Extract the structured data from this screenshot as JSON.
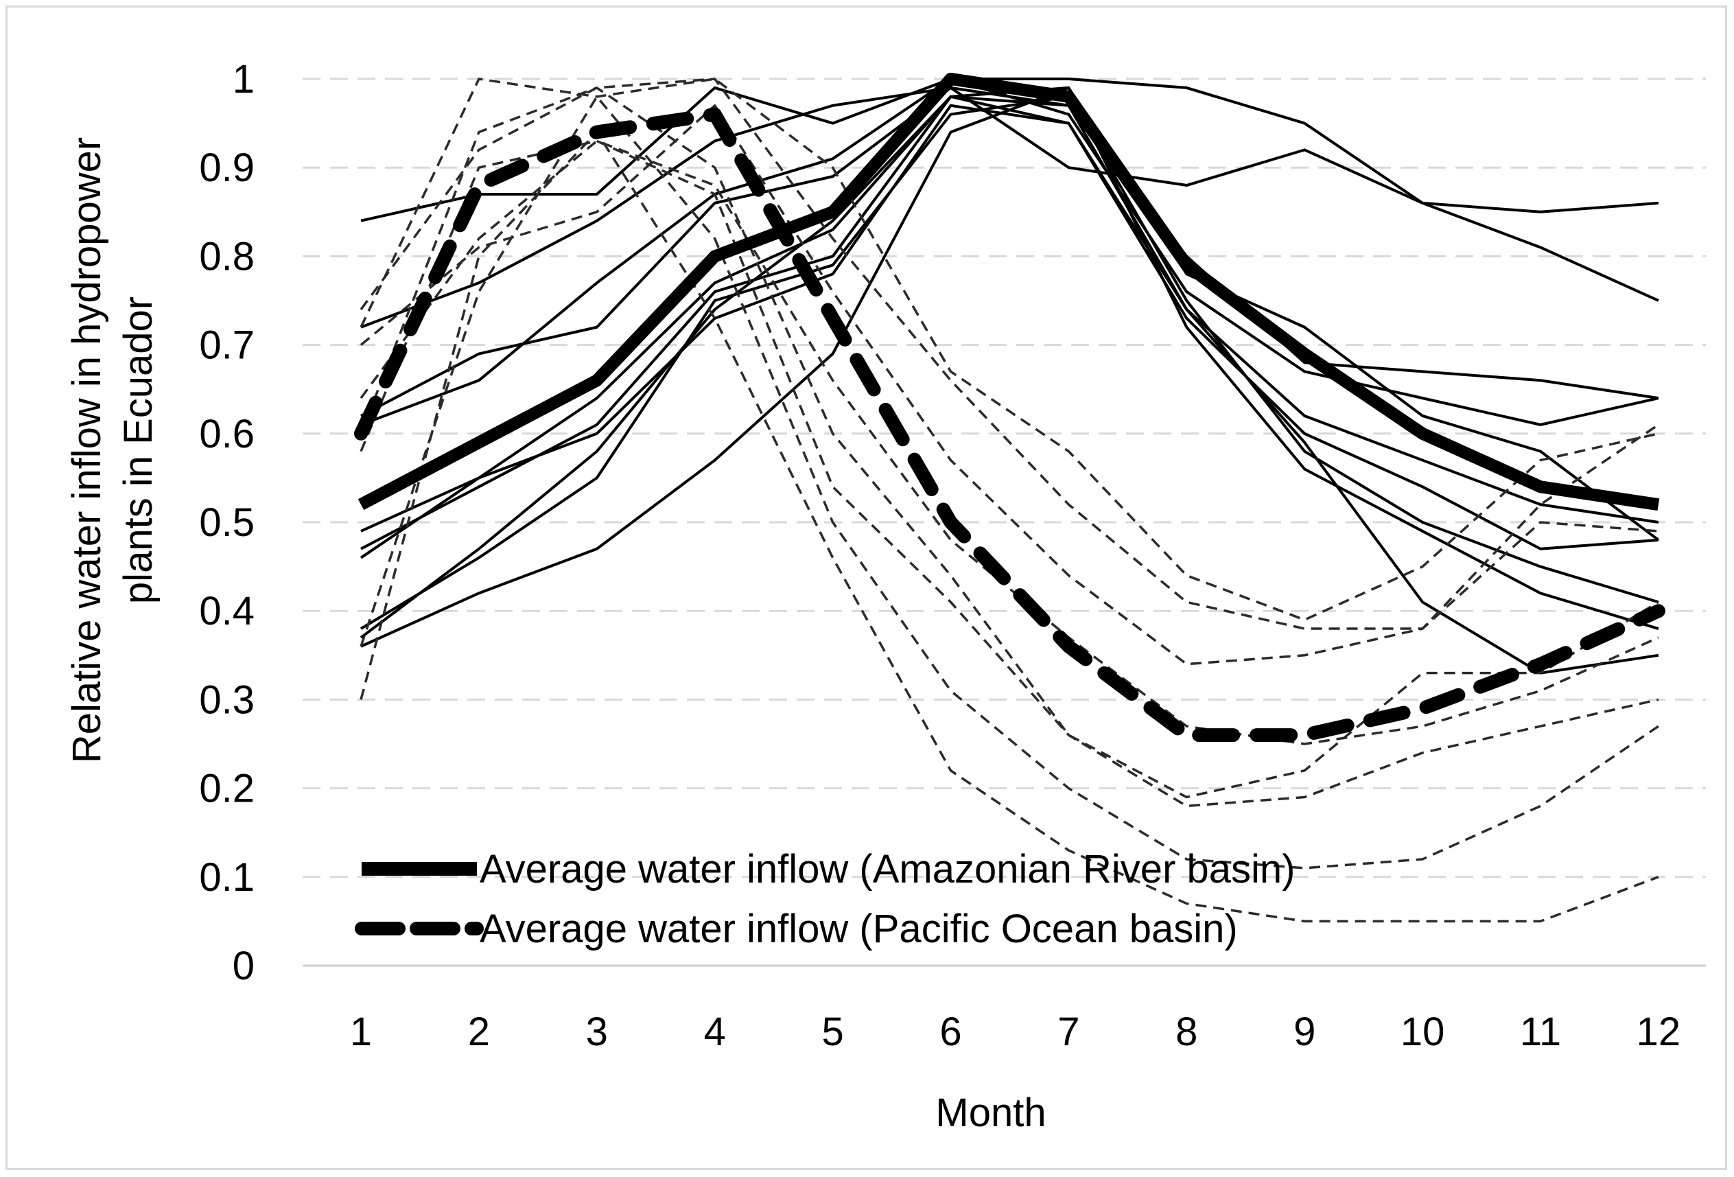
{
  "chart_data": {
    "type": "line",
    "title": "",
    "xlabel": "Month",
    "ylabel_lines": [
      "Relative water inflow in hydropower",
      "plants in Ecuador"
    ],
    "x": [
      1,
      2,
      3,
      4,
      5,
      6,
      7,
      8,
      9,
      10,
      11,
      12
    ],
    "x_tick_labels": [
      "1",
      "2",
      "3",
      "4",
      "5",
      "6",
      "7",
      "8",
      "9",
      "10",
      "11",
      "12"
    ],
    "y_tick_labels": [
      "0",
      "0.1",
      "0.2",
      "0.3",
      "0.4",
      "0.5",
      "0.6",
      "0.7",
      "0.8",
      "0.9",
      "1"
    ],
    "ylim": [
      0,
      1
    ],
    "grid": "horizontal dashed",
    "legend_position": "bottom-left",
    "legend": [
      {
        "label": "Average water inflow (Amazonian River basin)",
        "style": "solid-thick",
        "color": "#000000"
      },
      {
        "label": "Average water inflow (Pacific Ocean basin)",
        "style": "dashed-thick",
        "color": "#000000"
      }
    ],
    "series": [
      {
        "basin": "Amazonian River",
        "role": "average",
        "values": [
          0.52,
          0.59,
          0.66,
          0.8,
          0.85,
          1.0,
          0.98,
          0.79,
          0.69,
          0.6,
          0.54,
          0.52
        ]
      },
      {
        "basin": "Pacific Ocean",
        "role": "average",
        "values": [
          0.6,
          0.88,
          0.94,
          0.96,
          0.73,
          0.5,
          0.36,
          0.26,
          0.26,
          0.29,
          0.34,
          0.4
        ]
      },
      {
        "basin": "Amazonian River",
        "role": "plant",
        "values": [
          0.84,
          0.87,
          0.87,
          0.99,
          0.95,
          1.0,
          1.0,
          0.99,
          0.95,
          0.86,
          0.85,
          0.86
        ]
      },
      {
        "basin": "Amazonian River",
        "role": "plant",
        "values": [
          0.72,
          0.77,
          0.84,
          0.93,
          0.97,
          0.99,
          0.9,
          0.88,
          0.92,
          0.86,
          0.81,
          0.75
        ]
      },
      {
        "basin": "Amazonian River",
        "role": "plant",
        "values": [
          0.62,
          0.69,
          0.72,
          0.86,
          0.89,
          0.99,
          0.97,
          0.8,
          0.68,
          0.67,
          0.66,
          0.64
        ]
      },
      {
        "basin": "Amazonian River",
        "role": "plant",
        "values": [
          0.61,
          0.66,
          0.77,
          0.87,
          0.91,
          1.0,
          0.96,
          0.76,
          0.67,
          0.64,
          0.61,
          0.64
        ]
      },
      {
        "basin": "Amazonian River",
        "role": "plant",
        "values": [
          0.49,
          0.55,
          0.64,
          0.77,
          0.83,
          0.98,
          0.99,
          0.78,
          0.72,
          0.62,
          0.58,
          0.48
        ]
      },
      {
        "basin": "Amazonian River",
        "role": "plant",
        "values": [
          0.47,
          0.54,
          0.61,
          0.76,
          0.8,
          0.98,
          0.97,
          0.74,
          0.62,
          0.57,
          0.52,
          0.5
        ]
      },
      {
        "basin": "Amazonian River",
        "role": "plant",
        "values": [
          0.46,
          0.55,
          0.6,
          0.73,
          0.78,
          0.97,
          0.95,
          0.73,
          0.6,
          0.54,
          0.47,
          0.48
        ]
      },
      {
        "basin": "Amazonian River",
        "role": "plant",
        "values": [
          0.38,
          0.46,
          0.55,
          0.75,
          0.79,
          0.96,
          0.98,
          0.75,
          0.58,
          0.5,
          0.45,
          0.41
        ]
      },
      {
        "basin": "Amazonian River",
        "role": "plant",
        "values": [
          0.36,
          0.42,
          0.47,
          0.57,
          0.69,
          0.94,
          0.99,
          0.72,
          0.56,
          0.49,
          0.42,
          0.38
        ]
      },
      {
        "basin": "Amazonian River",
        "role": "plant",
        "values": [
          0.37,
          0.47,
          0.58,
          0.74,
          0.84,
          0.98,
          0.95,
          0.74,
          0.59,
          0.41,
          0.33,
          0.35
        ]
      },
      {
        "basin": "Pacific Ocean",
        "role": "plant",
        "values": [
          0.72,
          1.0,
          0.98,
          1.0,
          0.9,
          0.67,
          0.58,
          0.44,
          0.39,
          0.45,
          0.57,
          0.6
        ]
      },
      {
        "basin": "Pacific Ocean",
        "role": "plant",
        "values": [
          0.74,
          0.92,
          0.99,
          1.0,
          0.82,
          0.66,
          0.52,
          0.41,
          0.38,
          0.38,
          0.52,
          0.61
        ]
      },
      {
        "basin": "Pacific Ocean",
        "role": "plant",
        "values": [
          0.7,
          0.81,
          0.85,
          0.97,
          0.76,
          0.57,
          0.44,
          0.34,
          0.35,
          0.38,
          0.5,
          0.49
        ]
      },
      {
        "basin": "Pacific Ocean",
        "role": "plant",
        "values": [
          0.64,
          0.82,
          0.93,
          0.88,
          0.66,
          0.48,
          0.37,
          0.27,
          0.25,
          0.27,
          0.31,
          0.37
        ]
      },
      {
        "basin": "Pacific Ocean",
        "role": "plant",
        "values": [
          0.6,
          0.94,
          0.99,
          0.9,
          0.6,
          0.44,
          0.26,
          0.19,
          0.22,
          0.33,
          0.33,
          0.41
        ]
      },
      {
        "basin": "Pacific Ocean",
        "role": "plant",
        "values": [
          0.58,
          0.9,
          0.93,
          0.87,
          0.54,
          0.41,
          0.26,
          0.18,
          0.19,
          0.24,
          0.27,
          0.3
        ]
      },
      {
        "basin": "Pacific Ocean",
        "role": "plant",
        "values": [
          0.36,
          0.76,
          0.98,
          0.82,
          0.5,
          0.31,
          0.2,
          0.12,
          0.11,
          0.12,
          0.18,
          0.27
        ]
      },
      {
        "basin": "Pacific Ocean",
        "role": "plant",
        "values": [
          0.3,
          0.8,
          0.94,
          0.73,
          0.46,
          0.22,
          0.13,
          0.07,
          0.05,
          0.05,
          0.05,
          0.1
        ]
      }
    ]
  }
}
